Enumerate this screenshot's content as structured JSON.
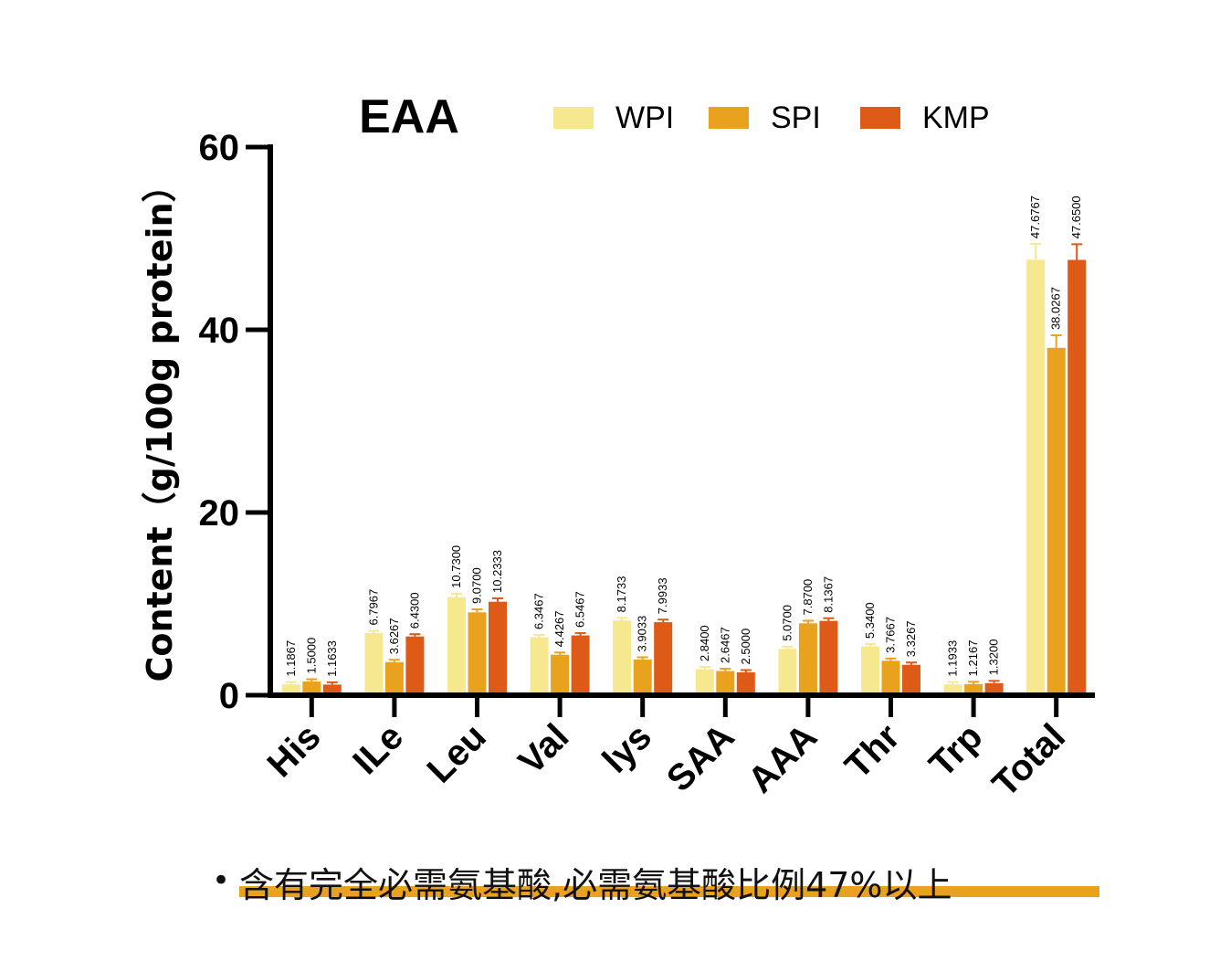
{
  "colors": {
    "WPI": "#F6E88E",
    "SPI": "#E8A21E",
    "KMP": "#DD5A17",
    "axis": "#000000",
    "highlight": "#E8A21E"
  },
  "chart_data": {
    "type": "bar",
    "title": "EAA",
    "ylabel": "Content（g/100g protein）",
    "xlabel": "",
    "ylim": [
      0,
      60
    ],
    "yticks": [
      "0",
      "20",
      "40",
      "60"
    ],
    "legend_position": "top",
    "categories": [
      "His",
      "ILe",
      "Leu",
      "Val",
      "lys",
      "SAA",
      "AAA",
      "Thr",
      "Trp",
      "Total"
    ],
    "series": [
      {
        "name": "WPI",
        "values": [
          1.1867,
          6.7967,
          10.73,
          6.3467,
          8.1733,
          2.84,
          5.07,
          5.34,
          1.1933,
          47.6767
        ],
        "labels": [
          "1.1867",
          "6.7967",
          "10.7300",
          "6.3467",
          "8.1733",
          "2.8400",
          "5.0700",
          "5.3400",
          "1.1933",
          "47.6767"
        ]
      },
      {
        "name": "SPI",
        "values": [
          1.5,
          3.6267,
          9.07,
          4.4267,
          3.9033,
          2.6467,
          7.87,
          3.7667,
          1.2167,
          38.0267
        ],
        "labels": [
          "1.5000",
          "3.6267",
          "9.0700",
          "4.4267",
          "3.9033",
          "2.6467",
          "7.8700",
          "3.7667",
          "1.2167",
          "38.0267"
        ]
      },
      {
        "name": "KMP",
        "values": [
          1.1633,
          6.43,
          10.2333,
          6.5467,
          7.9933,
          2.5,
          8.1367,
          3.3267,
          1.32,
          47.65
        ],
        "labels": [
          "1.1633",
          "6.4300",
          "10.2333",
          "6.5467",
          "7.9933",
          "2.5000",
          "8.1367",
          "3.3267",
          "1.3200",
          "47.6500"
        ]
      }
    ]
  },
  "footer": {
    "bullet": "•",
    "text": "含有完全必需氨基酸,必需氨基酸比例47%以上"
  }
}
